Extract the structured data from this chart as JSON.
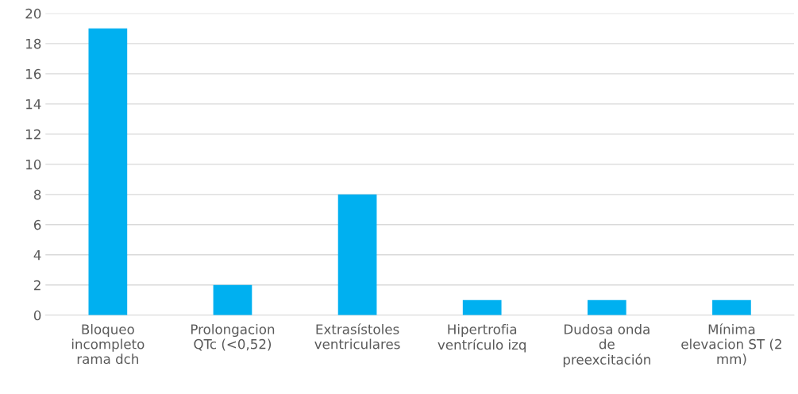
{
  "chart_data": {
    "type": "bar",
    "categories": [
      "Bloqueo\nincompleto\nrama dch",
      "Prolongacion\nQTc (<0,52)",
      "Extrasístoles\nventriculares",
      "Hipertrofia\nventrículo izq",
      "Dudosa onda\nde\npreexcitación",
      "Mínima\nelevacion ST (2\nmm)"
    ],
    "values": [
      19,
      2,
      8,
      1,
      1,
      1
    ],
    "color": "#00b0f0",
    "ylim": [
      0,
      20
    ],
    "yticks": [
      0,
      2,
      4,
      6,
      8,
      10,
      12,
      14,
      16,
      18,
      20
    ],
    "grid": "y",
    "legend": false
  }
}
